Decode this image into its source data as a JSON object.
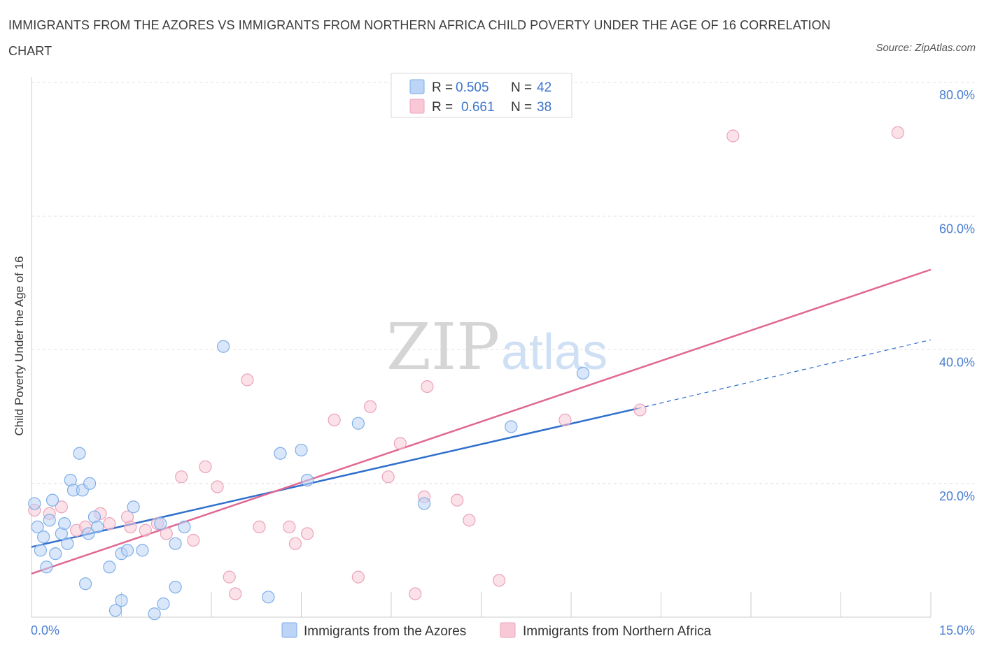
{
  "title": "IMMIGRANTS FROM THE AZORES VS IMMIGRANTS FROM NORTHERN AFRICA CHILD POVERTY UNDER THE AGE OF 16 CORRELATION CHART",
  "source": "Source: ZipAtlas.com",
  "watermark": {
    "zip": "ZIP",
    "atlas": "atlas"
  },
  "chart_data": {
    "type": "scatter",
    "title": "IMMIGRANTS FROM THE AZORES VS IMMIGRANTS FROM NORTHERN AFRICA CHILD POVERTY UNDER THE AGE OF 16 CORRELATION CHART",
    "xlabel": "",
    "ylabel": "Child Poverty Under the Age of 16",
    "xlim": [
      0,
      15
    ],
    "ylim": [
      0,
      80
    ],
    "x_tick_labels": {
      "min": "0.0%",
      "max": "15.0%"
    },
    "y_ticks": [
      {
        "value": 20,
        "label": "20.0%"
      },
      {
        "value": 40,
        "label": "40.0%"
      },
      {
        "value": 60,
        "label": "60.0%"
      },
      {
        "value": 80,
        "label": "80.0%"
      }
    ],
    "grid": true,
    "legend": {
      "placement": "top-center",
      "r_label": "R =",
      "n_label": "N =",
      "entries": [
        {
          "r": "0.505",
          "n": "42"
        },
        {
          "r": "0.661",
          "n": "38"
        }
      ]
    },
    "series": [
      {
        "name": "Immigrants from the Azores",
        "color": "#7eaee8",
        "fill": "#bcd4f5",
        "line_color": "#2f6fcc",
        "trend": {
          "x0": 0.0,
          "y0": 10.5,
          "x1": 10.1,
          "y1": 31.2,
          "dash_x1": 15.0,
          "dash_y1": 41.5
        },
        "points": [
          [
            0.05,
            17.0
          ],
          [
            0.1,
            13.5
          ],
          [
            0.15,
            10.0
          ],
          [
            0.2,
            12.0
          ],
          [
            0.25,
            7.5
          ],
          [
            0.3,
            14.5
          ],
          [
            0.35,
            17.5
          ],
          [
            0.4,
            9.5
          ],
          [
            0.5,
            12.5
          ],
          [
            0.55,
            14.0
          ],
          [
            0.6,
            11.0
          ],
          [
            0.65,
            20.5
          ],
          [
            0.7,
            19.0
          ],
          [
            0.8,
            24.5
          ],
          [
            0.85,
            19.0
          ],
          [
            0.9,
            5.0
          ],
          [
            0.95,
            12.5
          ],
          [
            0.97,
            20.0
          ],
          [
            1.05,
            15.0
          ],
          [
            1.1,
            13.5
          ],
          [
            1.3,
            7.5
          ],
          [
            1.4,
            1.0
          ],
          [
            1.5,
            2.5
          ],
          [
            1.5,
            9.5
          ],
          [
            1.6,
            10.0
          ],
          [
            1.7,
            16.5
          ],
          [
            1.85,
            10.0
          ],
          [
            2.05,
            0.5
          ],
          [
            2.15,
            14.0
          ],
          [
            2.2,
            2.0
          ],
          [
            2.4,
            11.0
          ],
          [
            2.4,
            4.5
          ],
          [
            2.55,
            13.5
          ],
          [
            3.2,
            40.5
          ],
          [
            3.95,
            3.0
          ],
          [
            4.15,
            24.5
          ],
          [
            4.5,
            25.0
          ],
          [
            4.6,
            20.5
          ],
          [
            5.45,
            29.0
          ],
          [
            6.55,
            17.0
          ],
          [
            8.0,
            28.5
          ],
          [
            9.2,
            36.5
          ]
        ]
      },
      {
        "name": "Immigrants from Northern Africa",
        "color": "#eba3bb",
        "fill": "#f8c8d6",
        "line_color": "#e06792",
        "trend": {
          "x0": 0.0,
          "y0": 6.5,
          "x1": 15.0,
          "y1": 52.0
        },
        "points": [
          [
            0.05,
            16.0
          ],
          [
            0.3,
            15.5
          ],
          [
            0.5,
            16.5
          ],
          [
            0.75,
            13.0
          ],
          [
            0.9,
            13.5
          ],
          [
            1.15,
            15.5
          ],
          [
            1.3,
            14.0
          ],
          [
            1.6,
            15.0
          ],
          [
            1.65,
            13.5
          ],
          [
            1.9,
            13.0
          ],
          [
            2.1,
            14.0
          ],
          [
            2.25,
            12.5
          ],
          [
            2.5,
            21.0
          ],
          [
            2.7,
            11.5
          ],
          [
            2.9,
            22.5
          ],
          [
            3.1,
            19.5
          ],
          [
            3.3,
            6.0
          ],
          [
            3.4,
            3.5
          ],
          [
            3.6,
            35.5
          ],
          [
            3.8,
            13.5
          ],
          [
            4.3,
            13.5
          ],
          [
            4.4,
            11.0
          ],
          [
            4.6,
            12.5
          ],
          [
            5.05,
            29.5
          ],
          [
            5.45,
            6.0
          ],
          [
            5.65,
            31.5
          ],
          [
            5.95,
            21.0
          ],
          [
            6.15,
            26.0
          ],
          [
            6.4,
            3.5
          ],
          [
            6.55,
            18.0
          ],
          [
            6.6,
            34.5
          ],
          [
            7.1,
            17.5
          ],
          [
            7.3,
            14.5
          ],
          [
            7.8,
            5.5
          ],
          [
            8.9,
            29.5
          ],
          [
            10.15,
            31.0
          ],
          [
            11.7,
            72.0
          ],
          [
            14.45,
            72.5
          ]
        ]
      }
    ]
  }
}
